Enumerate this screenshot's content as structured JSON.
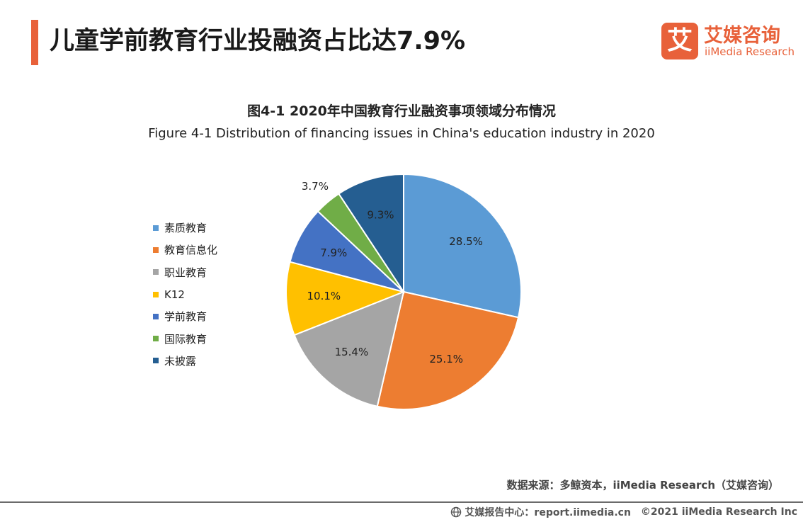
{
  "header": {
    "title": "儿童学前教育行业投融资占比达7.9%",
    "logo_cn": "艾媒咨询",
    "logo_en": "iiMedia Research",
    "logo_mark": "艾",
    "accent_color": "#e8613a"
  },
  "chart_data": {
    "type": "pie",
    "title": "图4-1 2020年中国教育行业融资事项领域分布情况",
    "subtitle": "Figure 4-1 Distribution of financing issues in China's education industry in 2020",
    "categories": [
      "素质教育",
      "教育信息化",
      "职业教育",
      "K12",
      "学前教育",
      "国际教育",
      "未披露"
    ],
    "values": [
      28.5,
      25.1,
      15.4,
      10.1,
      7.9,
      3.7,
      9.3
    ],
    "labels": [
      "28.5%",
      "25.1%",
      "15.4%",
      "10.1%",
      "7.9%",
      "3.7%",
      "9.3%"
    ],
    "colors": [
      "#5b9bd5",
      "#ed7d31",
      "#a5a5a5",
      "#ffc000",
      "#4472c4",
      "#70ad47",
      "#255e91"
    ],
    "legend_position": "left"
  },
  "footer": {
    "source": "数据来源：多鲸资本，iiMedia Research（艾媒咨询）",
    "center": "艾媒报告中心：report.iimedia.cn",
    "copyright": "©2021  iiMedia Research  Inc"
  }
}
